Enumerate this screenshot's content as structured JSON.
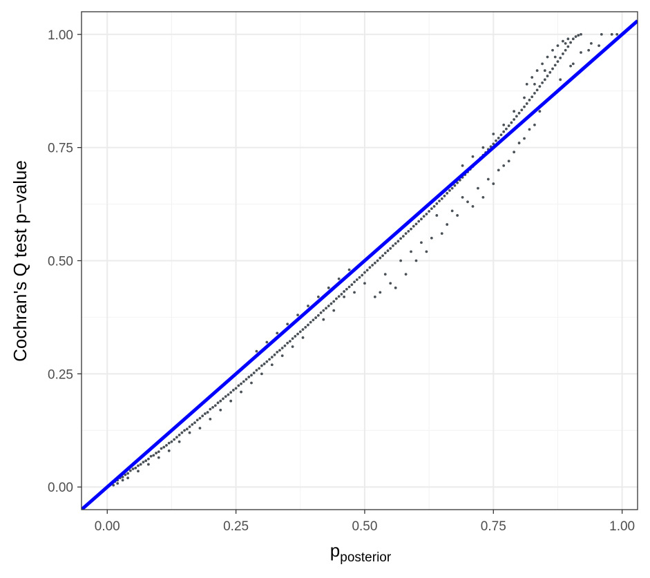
{
  "chart_data": {
    "type": "scatter",
    "title": "",
    "xlabel": "p",
    "xlabel_subscript": "posterior",
    "ylabel": "Cochran's Q test p−value",
    "xlim": [
      -0.05,
      1.03
    ],
    "ylim": [
      -0.05,
      1.05
    ],
    "x_ticks": [
      0.0,
      0.25,
      0.5,
      0.75,
      1.0
    ],
    "x_tick_labels": [
      "0.00",
      "0.25",
      "0.50",
      "0.75",
      "1.00"
    ],
    "y_ticks": [
      0.0,
      0.25,
      0.5,
      0.75,
      1.0
    ],
    "y_tick_labels": [
      "0.00",
      "0.25",
      "0.50",
      "0.75",
      "1.00"
    ],
    "grid": true,
    "legend": "none",
    "point_color": "#4a5157",
    "reference_line": {
      "slope": 1,
      "intercept": 0,
      "color": "#0000ff"
    },
    "series": [
      {
        "points": [
          [
            0.005,
            0.005
          ],
          [
            0.01,
            0.008
          ],
          [
            0.015,
            0.012
          ],
          [
            0.02,
            0.015
          ],
          [
            0.025,
            0.02
          ],
          [
            0.03,
            0.022
          ],
          [
            0.035,
            0.027
          ],
          [
            0.04,
            0.03
          ],
          [
            0.045,
            0.036
          ],
          [
            0.05,
            0.04
          ],
          [
            0.055,
            0.042
          ],
          [
            0.06,
            0.047
          ],
          [
            0.065,
            0.05
          ],
          [
            0.07,
            0.055
          ],
          [
            0.075,
            0.058
          ],
          [
            0.08,
            0.062
          ],
          [
            0.085,
            0.068
          ],
          [
            0.09,
            0.07
          ],
          [
            0.095,
            0.075
          ],
          [
            0.1,
            0.078
          ],
          [
            0.105,
            0.085
          ],
          [
            0.11,
            0.088
          ],
          [
            0.115,
            0.092
          ],
          [
            0.12,
            0.097
          ],
          [
            0.125,
            0.1
          ],
          [
            0.13,
            0.105
          ],
          [
            0.135,
            0.11
          ],
          [
            0.14,
            0.115
          ],
          [
            0.145,
            0.12
          ],
          [
            0.15,
            0.125
          ],
          [
            0.155,
            0.128
          ],
          [
            0.16,
            0.133
          ],
          [
            0.165,
            0.138
          ],
          [
            0.17,
            0.142
          ],
          [
            0.175,
            0.148
          ],
          [
            0.18,
            0.152
          ],
          [
            0.185,
            0.157
          ],
          [
            0.19,
            0.162
          ],
          [
            0.195,
            0.165
          ],
          [
            0.2,
            0.172
          ],
          [
            0.205,
            0.176
          ],
          [
            0.21,
            0.18
          ],
          [
            0.215,
            0.186
          ],
          [
            0.22,
            0.19
          ],
          [
            0.225,
            0.195
          ],
          [
            0.23,
            0.2
          ],
          [
            0.235,
            0.204
          ],
          [
            0.24,
            0.209
          ],
          [
            0.245,
            0.214
          ],
          [
            0.25,
            0.218
          ],
          [
            0.255,
            0.224
          ],
          [
            0.26,
            0.228
          ],
          [
            0.265,
            0.233
          ],
          [
            0.27,
            0.238
          ],
          [
            0.275,
            0.243
          ],
          [
            0.28,
            0.247
          ],
          [
            0.285,
            0.252
          ],
          [
            0.29,
            0.258
          ],
          [
            0.295,
            0.262
          ],
          [
            0.3,
            0.268
          ],
          [
            0.305,
            0.272
          ],
          [
            0.31,
            0.277
          ],
          [
            0.315,
            0.282
          ],
          [
            0.32,
            0.287
          ],
          [
            0.325,
            0.292
          ],
          [
            0.33,
            0.298
          ],
          [
            0.335,
            0.302
          ],
          [
            0.34,
            0.307
          ],
          [
            0.345,
            0.312
          ],
          [
            0.35,
            0.318
          ],
          [
            0.355,
            0.322
          ],
          [
            0.36,
            0.328
          ],
          [
            0.365,
            0.333
          ],
          [
            0.37,
            0.338
          ],
          [
            0.375,
            0.343
          ],
          [
            0.38,
            0.348
          ],
          [
            0.385,
            0.353
          ],
          [
            0.39,
            0.358
          ],
          [
            0.395,
            0.364
          ],
          [
            0.4,
            0.369
          ],
          [
            0.405,
            0.374
          ],
          [
            0.41,
            0.379
          ],
          [
            0.415,
            0.385
          ],
          [
            0.42,
            0.39
          ],
          [
            0.425,
            0.395
          ],
          [
            0.43,
            0.4
          ],
          [
            0.435,
            0.405
          ],
          [
            0.44,
            0.41
          ],
          [
            0.445,
            0.416
          ],
          [
            0.45,
            0.421
          ],
          [
            0.455,
            0.426
          ],
          [
            0.46,
            0.432
          ],
          [
            0.465,
            0.437
          ],
          [
            0.47,
            0.442
          ],
          [
            0.475,
            0.447
          ],
          [
            0.48,
            0.453
          ],
          [
            0.485,
            0.458
          ],
          [
            0.49,
            0.463
          ],
          [
            0.495,
            0.468
          ],
          [
            0.5,
            0.474
          ],
          [
            0.505,
            0.479
          ],
          [
            0.51,
            0.485
          ],
          [
            0.515,
            0.49
          ],
          [
            0.52,
            0.495
          ],
          [
            0.525,
            0.5
          ],
          [
            0.53,
            0.506
          ],
          [
            0.535,
            0.511
          ],
          [
            0.54,
            0.517
          ],
          [
            0.545,
            0.522
          ],
          [
            0.55,
            0.527
          ],
          [
            0.555,
            0.533
          ],
          [
            0.56,
            0.538
          ],
          [
            0.565,
            0.543
          ],
          [
            0.57,
            0.549
          ],
          [
            0.575,
            0.554
          ],
          [
            0.58,
            0.56
          ],
          [
            0.585,
            0.565
          ],
          [
            0.59,
            0.57
          ],
          [
            0.595,
            0.576
          ],
          [
            0.6,
            0.581
          ],
          [
            0.605,
            0.587
          ],
          [
            0.61,
            0.592
          ],
          [
            0.615,
            0.598
          ],
          [
            0.62,
            0.603
          ],
          [
            0.625,
            0.609
          ],
          [
            0.63,
            0.615
          ],
          [
            0.635,
            0.62
          ],
          [
            0.64,
            0.626
          ],
          [
            0.645,
            0.632
          ],
          [
            0.65,
            0.637
          ],
          [
            0.655,
            0.643
          ],
          [
            0.66,
            0.649
          ],
          [
            0.665,
            0.655
          ],
          [
            0.67,
            0.66
          ],
          [
            0.675,
            0.666
          ],
          [
            0.68,
            0.672
          ],
          [
            0.685,
            0.678
          ],
          [
            0.69,
            0.684
          ],
          [
            0.695,
            0.69
          ],
          [
            0.7,
            0.696
          ],
          [
            0.705,
            0.702
          ],
          [
            0.71,
            0.708
          ],
          [
            0.715,
            0.714
          ],
          [
            0.72,
            0.72
          ],
          [
            0.725,
            0.727
          ],
          [
            0.73,
            0.733
          ],
          [
            0.735,
            0.739
          ],
          [
            0.74,
            0.746
          ],
          [
            0.745,
            0.752
          ],
          [
            0.75,
            0.758
          ],
          [
            0.755,
            0.765
          ],
          [
            0.76,
            0.771
          ],
          [
            0.765,
            0.778
          ],
          [
            0.77,
            0.785
          ],
          [
            0.775,
            0.791
          ],
          [
            0.78,
            0.798
          ],
          [
            0.785,
            0.805
          ],
          [
            0.79,
            0.812
          ],
          [
            0.795,
            0.819
          ],
          [
            0.8,
            0.826
          ],
          [
            0.805,
            0.833
          ],
          [
            0.81,
            0.84
          ],
          [
            0.815,
            0.847
          ],
          [
            0.82,
            0.855
          ],
          [
            0.825,
            0.862
          ],
          [
            0.83,
            0.87
          ],
          [
            0.835,
            0.877
          ],
          [
            0.84,
            0.885
          ],
          [
            0.845,
            0.893
          ],
          [
            0.85,
            0.9
          ],
          [
            0.855,
            0.908
          ],
          [
            0.86,
            0.916
          ],
          [
            0.865,
            0.924
          ],
          [
            0.87,
            0.932
          ],
          [
            0.875,
            0.94
          ],
          [
            0.88,
            0.948
          ],
          [
            0.885,
            0.957
          ],
          [
            0.89,
            0.965
          ],
          [
            0.895,
            0.973
          ],
          [
            0.9,
            0.982
          ],
          [
            0.905,
            0.99
          ],
          [
            0.91,
            0.995
          ],
          [
            0.915,
            0.998
          ],
          [
            0.92,
            1.0
          ],
          [
            0.52,
            0.42
          ],
          [
            0.53,
            0.43
          ],
          [
            0.55,
            0.45
          ],
          [
            0.56,
            0.44
          ],
          [
            0.58,
            0.47
          ],
          [
            0.6,
            0.5
          ],
          [
            0.62,
            0.52
          ],
          [
            0.63,
            0.55
          ],
          [
            0.65,
            0.56
          ],
          [
            0.66,
            0.58
          ],
          [
            0.68,
            0.6
          ],
          [
            0.7,
            0.63
          ],
          [
            0.72,
            0.66
          ],
          [
            0.74,
            0.68
          ],
          [
            0.76,
            0.7
          ],
          [
            0.78,
            0.72
          ],
          [
            0.8,
            0.76
          ],
          [
            0.82,
            0.79
          ],
          [
            0.84,
            0.83
          ],
          [
            0.86,
            0.86
          ],
          [
            0.88,
            0.9
          ],
          [
            0.9,
            0.93
          ],
          [
            0.92,
            0.96
          ],
          [
            0.94,
            0.98
          ],
          [
            0.96,
            1.0
          ],
          [
            0.98,
            1.0
          ],
          [
            0.99,
            1.0
          ],
          [
            0.955,
            0.975
          ],
          [
            0.935,
            0.965
          ],
          [
            0.905,
            0.935
          ],
          [
            0.64,
            0.6
          ],
          [
            0.67,
            0.61
          ],
          [
            0.69,
            0.64
          ],
          [
            0.71,
            0.62
          ],
          [
            0.73,
            0.64
          ],
          [
            0.75,
            0.67
          ],
          [
            0.77,
            0.71
          ],
          [
            0.79,
            0.74
          ],
          [
            0.81,
            0.77
          ],
          [
            0.83,
            0.8
          ],
          [
            0.57,
            0.5
          ],
          [
            0.59,
            0.52
          ],
          [
            0.61,
            0.54
          ],
          [
            0.54,
            0.47
          ],
          [
            0.5,
            0.45
          ],
          [
            0.48,
            0.43
          ],
          [
            0.46,
            0.42
          ],
          [
            0.44,
            0.39
          ],
          [
            0.42,
            0.37
          ],
          [
            0.38,
            0.33
          ],
          [
            0.36,
            0.31
          ],
          [
            0.34,
            0.29
          ],
          [
            0.32,
            0.27
          ],
          [
            0.3,
            0.25
          ],
          [
            0.28,
            0.23
          ],
          [
            0.26,
            0.21
          ],
          [
            0.24,
            0.19
          ],
          [
            0.22,
            0.17
          ],
          [
            0.2,
            0.15
          ],
          [
            0.18,
            0.13
          ],
          [
            0.16,
            0.12
          ],
          [
            0.14,
            0.1
          ],
          [
            0.12,
            0.08
          ],
          [
            0.1,
            0.065
          ],
          [
            0.08,
            0.05
          ],
          [
            0.06,
            0.035
          ],
          [
            0.04,
            0.02
          ],
          [
            0.03,
            0.015
          ],
          [
            0.02,
            0.008
          ],
          [
            0.012,
            0.004
          ],
          [
            0.47,
            0.48
          ],
          [
            0.45,
            0.46
          ],
          [
            0.43,
            0.44
          ],
          [
            0.41,
            0.42
          ],
          [
            0.39,
            0.4
          ],
          [
            0.37,
            0.38
          ],
          [
            0.35,
            0.36
          ],
          [
            0.33,
            0.34
          ],
          [
            0.31,
            0.32
          ],
          [
            0.29,
            0.3
          ],
          [
            0.69,
            0.71
          ],
          [
            0.71,
            0.73
          ],
          [
            0.73,
            0.75
          ],
          [
            0.75,
            0.78
          ],
          [
            0.77,
            0.8
          ],
          [
            0.79,
            0.83
          ],
          [
            0.81,
            0.86
          ],
          [
            0.83,
            0.89
          ],
          [
            0.85,
            0.92
          ],
          [
            0.87,
            0.95
          ],
          [
            0.89,
            0.98
          ],
          [
            0.895,
            0.99
          ],
          [
            0.885,
            0.985
          ],
          [
            0.875,
            0.975
          ],
          [
            0.865,
            0.965
          ],
          [
            0.855,
            0.95
          ],
          [
            0.845,
            0.935
          ],
          [
            0.835,
            0.92
          ],
          [
            0.825,
            0.905
          ],
          [
            0.815,
            0.89
          ]
        ]
      }
    ]
  }
}
